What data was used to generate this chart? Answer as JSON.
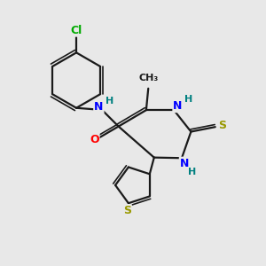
{
  "background_color": "#e8e8e8",
  "bond_color": "#1a1a1a",
  "atom_colors": {
    "N": "#0000ff",
    "O": "#ff0000",
    "S": "#999900",
    "Cl": "#00aa00",
    "H": "#008080",
    "C": "#1a1a1a"
  },
  "lw": 1.6,
  "dlw": 1.4,
  "dgap": 0.09
}
